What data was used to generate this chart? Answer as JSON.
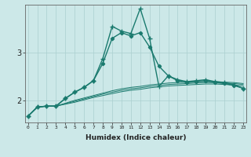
{
  "xlabel": "Humidex (Indice chaleur)",
  "bg_color": "#cce8e8",
  "line_color": "#1a7a6e",
  "grid_color": "#aacfcf",
  "x_ticks": [
    0,
    1,
    2,
    3,
    4,
    5,
    6,
    7,
    8,
    9,
    10,
    11,
    12,
    13,
    14,
    15,
    16,
    17,
    18,
    19,
    20,
    21,
    22,
    23
  ],
  "y_ticks": [
    2,
    3
  ],
  "xlim": [
    -0.3,
    23.3
  ],
  "ylim": [
    1.55,
    4.0
  ],
  "series": [
    {
      "x": [
        0,
        1,
        2,
        3,
        4,
        5,
        6,
        7,
        8,
        9,
        10,
        11,
        12,
        13,
        14,
        15,
        16,
        17,
        18,
        19,
        20,
        21,
        22,
        23
      ],
      "y": [
        1.68,
        1.87,
        1.89,
        1.89,
        2.05,
        2.18,
        2.28,
        2.42,
        2.78,
        3.3,
        3.42,
        3.35,
        3.42,
        3.12,
        2.72,
        2.52,
        2.42,
        2.38,
        2.4,
        2.42,
        2.38,
        2.36,
        2.32,
        2.26
      ],
      "marker": "D",
      "markersize": 2.2,
      "linewidth": 1.0
    },
    {
      "x": [
        0,
        1,
        2,
        3,
        4,
        5,
        6,
        7,
        8,
        9,
        10,
        11,
        12,
        13,
        14,
        15,
        16,
        17,
        18,
        19,
        20,
        21,
        22,
        23
      ],
      "y": [
        1.68,
        1.87,
        1.89,
        1.89,
        2.05,
        2.18,
        2.28,
        2.42,
        2.88,
        3.55,
        3.45,
        3.4,
        3.92,
        3.3,
        2.3,
        2.52,
        2.44,
        2.4,
        2.42,
        2.44,
        2.4,
        2.38,
        2.34,
        2.26
      ],
      "marker": "+",
      "markersize": 4.0,
      "linewidth": 1.0
    },
    {
      "x": [
        0,
        1,
        2,
        3,
        4,
        5,
        6,
        7,
        8,
        9,
        10,
        11,
        12,
        13,
        14,
        15,
        16,
        17,
        18,
        19,
        20,
        21,
        22,
        23
      ],
      "y": [
        1.68,
        1.87,
        1.89,
        1.89,
        1.94,
        1.99,
        2.04,
        2.09,
        2.14,
        2.18,
        2.22,
        2.25,
        2.27,
        2.3,
        2.32,
        2.34,
        2.35,
        2.36,
        2.37,
        2.38,
        2.38,
        2.37,
        2.36,
        2.34
      ],
      "marker": null,
      "linewidth": 0.7
    },
    {
      "x": [
        0,
        1,
        2,
        3,
        4,
        5,
        6,
        7,
        8,
        9,
        10,
        11,
        12,
        13,
        14,
        15,
        16,
        17,
        18,
        19,
        20,
        21,
        22,
        23
      ],
      "y": [
        1.68,
        1.87,
        1.89,
        1.89,
        1.95,
        2.01,
        2.06,
        2.11,
        2.16,
        2.21,
        2.25,
        2.28,
        2.3,
        2.33,
        2.35,
        2.37,
        2.38,
        2.39,
        2.4,
        2.4,
        2.4,
        2.39,
        2.38,
        2.36
      ],
      "marker": null,
      "linewidth": 0.7
    },
    {
      "x": [
        0,
        1,
        2,
        3,
        4,
        5,
        6,
        7,
        8,
        9,
        10,
        11,
        12,
        13,
        14,
        15,
        16,
        17,
        18,
        19,
        20,
        21,
        22,
        23
      ],
      "y": [
        1.68,
        1.87,
        1.89,
        1.89,
        1.93,
        1.97,
        2.02,
        2.07,
        2.11,
        2.15,
        2.19,
        2.22,
        2.24,
        2.27,
        2.29,
        2.31,
        2.32,
        2.33,
        2.34,
        2.35,
        2.35,
        2.34,
        2.33,
        2.31
      ],
      "marker": null,
      "linewidth": 0.7
    }
  ]
}
